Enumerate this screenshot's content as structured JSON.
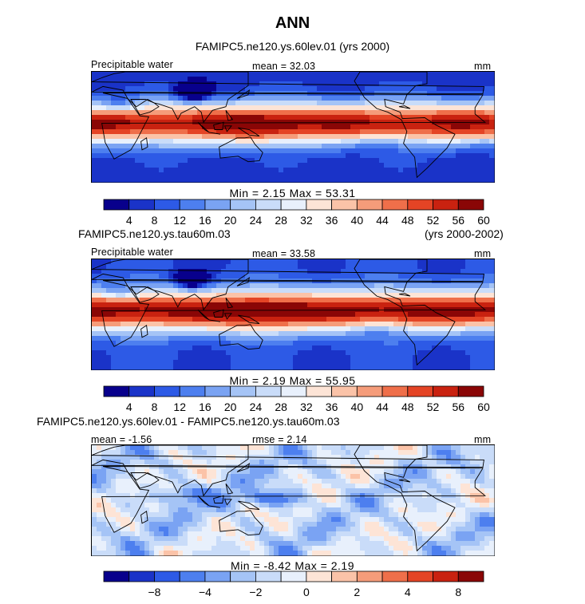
{
  "title": "ANN",
  "colors": {
    "abs_palette": [
      "#08008c",
      "#1a33c8",
      "#2d5ae6",
      "#4d7fef",
      "#7aa3f3",
      "#a5c4f6",
      "#c9dcf9",
      "#e8f0fc",
      "#fde4d6",
      "#fbc3a8",
      "#f59c7a",
      "#ef6f4a",
      "#e44425",
      "#c92210",
      "#8a0606"
    ],
    "diff_palette": [
      "#08008c",
      "#1a33c8",
      "#2d5ae6",
      "#4d7fef",
      "#7aa3f3",
      "#a5c4f6",
      "#c9dcf9",
      "#e8f0fc",
      "#fde4d6",
      "#fbc3a8",
      "#f59c7a",
      "#ef6f4a",
      "#e44425",
      "#c92210",
      "#8a0606"
    ],
    "land": "#000000"
  },
  "panels": [
    {
      "id": "p1",
      "case_title": "FAMIPC5.ne120.ys.60lev.01 (yrs 2000)",
      "years": "",
      "left_label": "Precipitable water",
      "mean_text": "mean =  32.03",
      "rmse_text": "",
      "units": "mm",
      "stats_text": "Min =    2.15  Max =   53.31",
      "field": "abs"
    },
    {
      "id": "p2",
      "case_title": "FAMIPC5.ne120.ys.tau60m.03",
      "years": "(yrs 2000-2002)",
      "left_label": "Precipitable water",
      "mean_text": "mean =  33.58",
      "rmse_text": "",
      "units": "mm",
      "stats_text": "Min =    2.19  Max =   55.95",
      "field": "abs"
    },
    {
      "id": "p3",
      "case_title": "FAMIPC5.ne120.ys.60lev.01 - FAMIPC5.ne120.ys.tau60m.03",
      "years": "",
      "left_label": "mean =  -1.56",
      "mean_text": "",
      "rmse_text": "rmse =   2.14",
      "units": "mm",
      "stats_text": "Min =   -8.42  Max =    2.19",
      "field": "diff"
    }
  ],
  "chart_data": [
    {
      "type": "heatmap",
      "title": "FAMIPC5.ne120.ys.60lev.01 (yrs 2000)",
      "variable": "Precipitable water",
      "units": "mm",
      "mean": 32.03,
      "min": 2.15,
      "max": 53.31,
      "colorbar_levels": [
        4,
        8,
        12,
        16,
        20,
        24,
        28,
        32,
        36,
        40,
        44,
        48,
        52,
        56,
        60
      ],
      "colorbar_tick_labels": [
        "4",
        "8",
        "12",
        "16",
        "20",
        "24",
        "28",
        "32",
        "36",
        "40",
        "44",
        "48",
        "52",
        "56",
        "60"
      ]
    },
    {
      "type": "heatmap",
      "title": "FAMIPC5.ne120.ys.tau60m.03",
      "years": "(yrs 2000-2002)",
      "variable": "Precipitable water",
      "units": "mm",
      "mean": 33.58,
      "min": 2.19,
      "max": 55.95,
      "colorbar_levels": [
        4,
        8,
        12,
        16,
        20,
        24,
        28,
        32,
        36,
        40,
        44,
        48,
        52,
        56,
        60
      ],
      "colorbar_tick_labels": [
        "4",
        "8",
        "12",
        "16",
        "20",
        "24",
        "28",
        "32",
        "36",
        "40",
        "44",
        "48",
        "52",
        "56",
        "60"
      ]
    },
    {
      "type": "heatmap",
      "title": "FAMIPC5.ne120.ys.60lev.01 - FAMIPC5.ne120.ys.tau60m.03",
      "units": "mm",
      "mean": -1.56,
      "rmse": 2.14,
      "min": -8.42,
      "max": 2.19,
      "colorbar_tick_labels": [
        "−8",
        "−4",
        "−2",
        "0",
        "2",
        "4",
        "8"
      ],
      "colorbar_tick_values": [
        -8,
        -4,
        -2,
        0,
        2,
        4,
        8
      ]
    }
  ]
}
